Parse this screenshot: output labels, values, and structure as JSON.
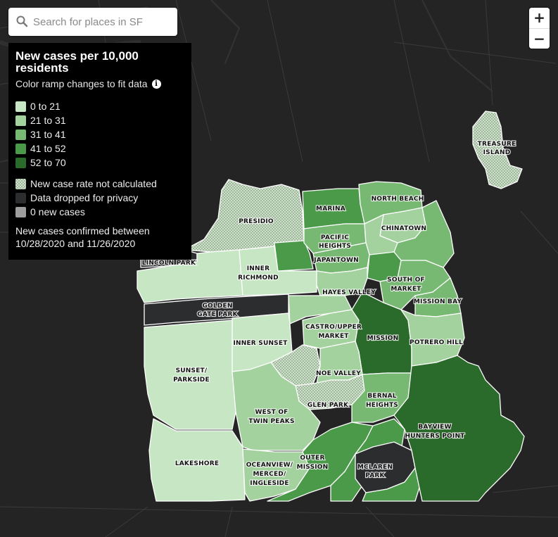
{
  "search": {
    "placeholder": "Search for places in SF"
  },
  "zoom": {
    "in_label": "+",
    "out_label": "−"
  },
  "legend": {
    "title": "New cases per 10,000 residents",
    "subtitle": "Color ramp changes to fit data",
    "ramp": [
      {
        "label": "0 to 21",
        "color": "#c7e6c4"
      },
      {
        "label": "21 to 31",
        "color": "#a3d29e"
      },
      {
        "label": "31 to 41",
        "color": "#77b972"
      },
      {
        "label": "41 to 52",
        "color": "#4a9a4a"
      },
      {
        "label": "52 to 70",
        "color": "#2a6a2a"
      }
    ],
    "other": [
      {
        "label": "New case rate not calculated",
        "swatch": "hatch"
      },
      {
        "label": "Data dropped for privacy",
        "color": "#2b2d2f"
      },
      {
        "label": "0 new cases",
        "color": "#9e9e9e"
      }
    ],
    "confirmed_line1": "New cases confirmed between",
    "confirmed_line2": "10/28/2020 and 11/26/2020"
  },
  "map": {
    "background": "#242424",
    "neighborhoods": [
      {
        "name": "PRESIDIO",
        "bucket": "not calculated"
      },
      {
        "name": "MARINA",
        "bucket": "41 to 52"
      },
      {
        "name": "NORTH BEACH",
        "bucket": "31 to 41"
      },
      {
        "name": "CHINATOWN",
        "bucket": "21 to 31"
      },
      {
        "name": "TREASURE ISLAND",
        "bucket": "not calculated"
      },
      {
        "name": "PACIFIC HEIGHTS",
        "bucket": "31 to 41"
      },
      {
        "name": "JAPANTOWN",
        "bucket": "31 to 41"
      },
      {
        "name": "LINCOLN PARK",
        "bucket": "privacy"
      },
      {
        "name": "INNER RICHMOND",
        "bucket": "0 to 21"
      },
      {
        "name": "HAYES VALLEY",
        "bucket": "21 to 31"
      },
      {
        "name": "SOUTH OF MARKET",
        "bucket": "31 to 41"
      },
      {
        "name": "MISSION BAY",
        "bucket": "31 to 41"
      },
      {
        "name": "GOLDEN GATE PARK",
        "bucket": "privacy"
      },
      {
        "name": "CASTRO/UPPER MARKET",
        "bucket": "21 to 31"
      },
      {
        "name": "INNER SUNSET",
        "bucket": "0 to 21"
      },
      {
        "name": "MISSION",
        "bucket": "52 to 70"
      },
      {
        "name": "POTRERO HILL",
        "bucket": "21 to 31"
      },
      {
        "name": "SUNSET/ PARKSIDE",
        "bucket": "0 to 21"
      },
      {
        "name": "NOE VALLEY",
        "bucket": "21 to 31"
      },
      {
        "name": "BERNAL HEIGHTS",
        "bucket": "31 to 41"
      },
      {
        "name": "WEST OF TWIN PEAKS",
        "bucket": "21 to 31"
      },
      {
        "name": "GLEN PARK",
        "bucket": "21 to 31"
      },
      {
        "name": "BAYVIEW HUNTERS POINT",
        "bucket": "52 to 70"
      },
      {
        "name": "LAKESHORE",
        "bucket": "0 to 21"
      },
      {
        "name": "OUTER MISSION",
        "bucket": "41 to 52"
      },
      {
        "name": "OCEANVIEW/ MERCED/ INGLESIDE",
        "bucket": "21 to 31"
      },
      {
        "name": "MCLAREN PARK",
        "bucket": "privacy"
      }
    ],
    "labels": {
      "presidio": "PRESIDIO",
      "marina": "MARINA",
      "north_beach": "NORTH BEACH",
      "chinatown": "CHINATOWN",
      "treasure_1": "TREASURE",
      "treasure_2": "ISLAND",
      "pacific_1": "PACIFIC",
      "pacific_2": "HEIGHTS",
      "japantown": "JAPANTOWN",
      "lincoln_park": "LINCOLN PARK",
      "inner_richmond_1": "INNER",
      "inner_richmond_2": "RICHMOND",
      "hayes_valley": "HAYES VALLEY",
      "soma_1": "SOUTH OF",
      "soma_2": "MARKET",
      "mission_bay": "MISSION BAY",
      "ggp_1": "GOLDEN",
      "ggp_2": "GATE PARK",
      "castro_1": "CASTRO/UPPER",
      "castro_2": "MARKET",
      "inner_sunset": "INNER SUNSET",
      "mission": "MISSION",
      "potrero": "POTRERO HILL",
      "sunset_1": "SUNSET/",
      "sunset_2": "PARKSIDE",
      "noe": "NOE VALLEY",
      "bernal_1": "BERNAL",
      "bernal_2": "HEIGHTS",
      "wtp_1": "WEST OF",
      "wtp_2": "TWIN PEAKS",
      "glen": "GLEN PARK",
      "bayview_1": "BAYVIEW",
      "bayview_2": "HUNTERS POINT",
      "lakeshore": "LAKESHORE",
      "outer_mission_1": "OUTER",
      "outer_mission_2": "MISSION",
      "omi_1": "OCEANVIEW/",
      "omi_2": "MERCED/",
      "omi_3": "INGLESIDE",
      "mclaren_1": "MCLAREN",
      "mclaren_2": "PARK"
    }
  }
}
